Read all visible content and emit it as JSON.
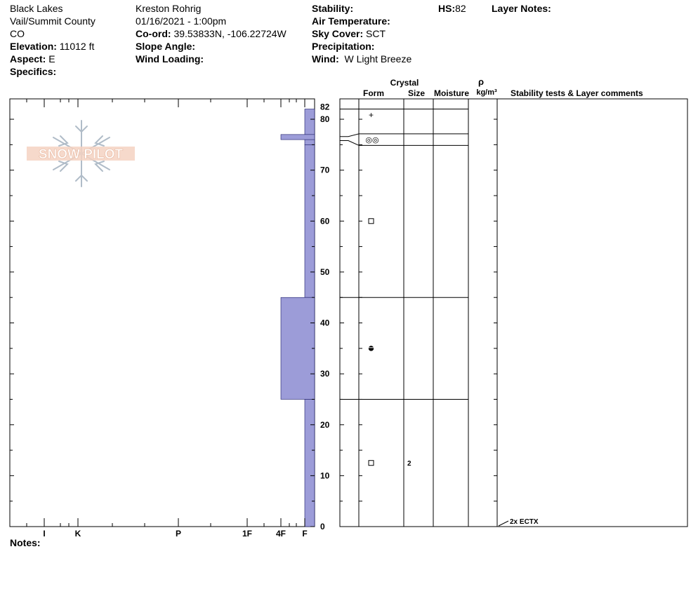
{
  "location": {
    "name": "Black Lakes",
    "region": "Vail/Summit County",
    "state": "CO",
    "elevation_label": "Elevation:",
    "elevation": "11012 ft",
    "aspect_label": "Aspect:",
    "aspect": "E",
    "specifics_label": "Specifics:"
  },
  "observer": {
    "name": "Kreston Rohrig",
    "datetime": "01/16/2021 - 1:00pm",
    "coord_label": "Co-ord:",
    "coord": "39.53833N, -106.22724W",
    "slope_label": "Slope Angle:",
    "wind_loading_label": "Wind Loading:"
  },
  "conditions": {
    "stability_label": "Stability:",
    "air_temp_label": "Air Temperature:",
    "sky_label": "Sky Cover:",
    "sky": "SCT",
    "precip_label": "Precipitation:",
    "wind_label": "Wind:",
    "wind": "W Light Breeze",
    "hs_label": "HS:",
    "hs": "82",
    "layer_notes_label": "Layer Notes:"
  },
  "notes_label": "Notes:",
  "logo_text": "SNOW PILOT",
  "chart_data": {
    "type": "bar",
    "orientation": "horizontal",
    "ylim": [
      0,
      82
    ],
    "y_ticks": [
      0,
      10,
      20,
      30,
      40,
      50,
      60,
      70,
      80,
      82
    ],
    "hardness_scale": [
      "F",
      "4F",
      "1F",
      "P",
      "K",
      "I"
    ],
    "hardness_tick_labels": [
      "I",
      "K",
      "P",
      "1F",
      "4F",
      "F"
    ],
    "layers": [
      {
        "top": 82,
        "bottom": 75,
        "hardness": "F",
        "form": "+",
        "size": "",
        "moisture": ""
      },
      {
        "top": 75,
        "bottom": 45,
        "hardness": "F",
        "form": "□",
        "size": "",
        "moisture": ""
      },
      {
        "top": 45,
        "bottom": 25,
        "hardness": "4F",
        "form": "●",
        "size": "",
        "moisture": ""
      },
      {
        "top": 25,
        "bottom": 0,
        "hardness": "F",
        "form": "□",
        "size": "2",
        "moisture": ""
      }
    ],
    "crust": {
      "top": 77,
      "bottom": 76,
      "hardness": "4F",
      "form": "◎◎"
    },
    "column_headers": {
      "crystal": "Crystal",
      "form": "Form",
      "size": "Size",
      "moisture": "Moisture",
      "rho": "ρ",
      "density_unit": "kg/m³",
      "comments": "Stability tests & Layer comments"
    },
    "stability_tests": [
      {
        "height": 0,
        "label": "2x ECTX"
      }
    ],
    "colors": {
      "bar": "#9c9cd8",
      "bar_stroke": "#1a1a66",
      "logo": "#f0c8b4",
      "flake": "#b0bcc8"
    }
  }
}
